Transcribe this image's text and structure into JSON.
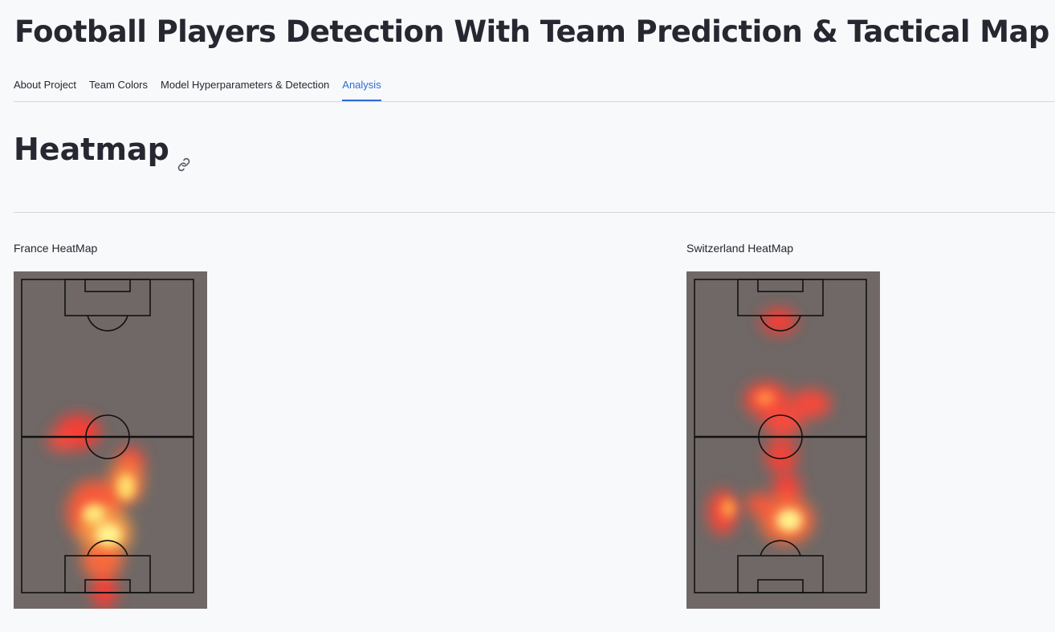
{
  "app": {
    "title": "Football Players Detection With Team Prediction & Tactical Map"
  },
  "tabs": [
    {
      "label": "About Project",
      "active": false
    },
    {
      "label": "Team Colors",
      "active": false
    },
    {
      "label": "Model Hyperparameters & Detection",
      "active": false
    },
    {
      "label": "Analysis",
      "active": true
    }
  ],
  "section": {
    "heading": "Heatmap",
    "anchor_icon": "link-icon"
  },
  "heatmaps": {
    "france": {
      "label": "France HeatMap",
      "pitch_color": "#6f6866",
      "hotspots": "centre circle, centre line, left-of-centre lower half, around the bottom penalty arc, bottom six-yard box"
    },
    "switzerland": {
      "label": "Switzerland HeatMap",
      "pitch_color": "#6f6866",
      "hotspots": "top penalty arc, area above centre circle, centre circle, lower half left and centre"
    }
  },
  "colors": {
    "accent": "#2f6bd6",
    "text": "#262730",
    "divider": "#d6d8de",
    "background": "#f8f9fb"
  }
}
